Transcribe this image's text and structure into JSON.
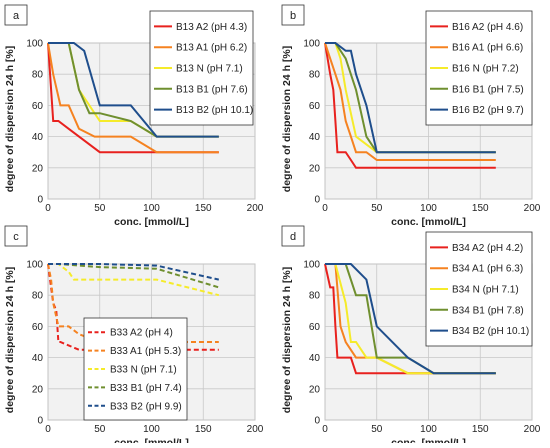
{
  "chart_data": [
    {
      "type": "line",
      "panel_label": "a",
      "xlabel": "conc. [mmol/L]",
      "ylabel": "degree of dispersion 24 h [%]",
      "xlim": [
        0,
        200
      ],
      "ylim": [
        0,
        100
      ],
      "xticks": [
        0,
        50,
        100,
        150,
        200
      ],
      "yticks": [
        0,
        20,
        40,
        60,
        80,
        100
      ],
      "grid": true,
      "legend_position": "top-right",
      "series": [
        {
          "name": "B13 A2 (pH 4.3)",
          "color": "#e8211e",
          "dashed": false,
          "x": [
            0,
            5,
            10,
            20,
            30,
            50,
            105,
            165
          ],
          "y": [
            100,
            50,
            50,
            45,
            40,
            30,
            30,
            30
          ]
        },
        {
          "name": "B13 A1 (pH 6.2)",
          "color": "#f58220",
          "dashed": false,
          "x": [
            0,
            5,
            12,
            20,
            30,
            45,
            80,
            105,
            165
          ],
          "y": [
            100,
            80,
            60,
            60,
            45,
            40,
            40,
            30,
            30
          ]
        },
        {
          "name": "B13 N (pH 7.1)",
          "color": "#f5eb2a",
          "dashed": false,
          "x": [
            0,
            10,
            20,
            30,
            40,
            50,
            80,
            105,
            165
          ],
          "y": [
            100,
            100,
            100,
            70,
            60,
            50,
            50,
            40,
            40
          ]
        },
        {
          "name": "B13 B1 (pH 7.6)",
          "color": "#6f8f2f",
          "dashed": false,
          "x": [
            0,
            10,
            20,
            30,
            40,
            50,
            80,
            105,
            165
          ],
          "y": [
            100,
            100,
            100,
            70,
            55,
            55,
            50,
            40,
            40
          ]
        },
        {
          "name": "B13 B2 (pH 10.1)",
          "color": "#1f4e8c",
          "dashed": false,
          "x": [
            0,
            10,
            25,
            35,
            50,
            80,
            105,
            165
          ],
          "y": [
            100,
            100,
            100,
            95,
            60,
            60,
            40,
            40
          ]
        }
      ]
    },
    {
      "type": "line",
      "panel_label": "b",
      "xlabel": "conc. [mmol/L]",
      "ylabel": "degree of dispersion 24 h [%]",
      "xlim": [
        0,
        200
      ],
      "ylim": [
        0,
        100
      ],
      "xticks": [
        0,
        50,
        100,
        150,
        200
      ],
      "yticks": [
        0,
        20,
        40,
        60,
        80,
        100
      ],
      "grid": true,
      "legend_position": "top-right",
      "series": [
        {
          "name": "B16 A2 (pH 4.6)",
          "color": "#e8211e",
          "dashed": false,
          "x": [
            0,
            5,
            8,
            10,
            12,
            20,
            25,
            30,
            165
          ],
          "y": [
            100,
            80,
            70,
            50,
            30,
            30,
            25,
            20,
            20
          ]
        },
        {
          "name": "B16 A1 (pH 6.6)",
          "color": "#f58220",
          "dashed": false,
          "x": [
            0,
            10,
            15,
            20,
            25,
            30,
            40,
            50,
            165
          ],
          "y": [
            100,
            80,
            70,
            50,
            40,
            30,
            30,
            25,
            25
          ]
        },
        {
          "name": "B16 N (pH 7.2)",
          "color": "#f5eb2a",
          "dashed": false,
          "x": [
            0,
            10,
            15,
            20,
            30,
            40,
            50,
            165
          ],
          "y": [
            100,
            100,
            90,
            70,
            40,
            35,
            30,
            30
          ]
        },
        {
          "name": "B16 B1 (pH 7.5)",
          "color": "#6f8f2f",
          "dashed": false,
          "x": [
            0,
            10,
            20,
            30,
            40,
            50,
            165
          ],
          "y": [
            100,
            100,
            90,
            70,
            40,
            30,
            30
          ]
        },
        {
          "name": "B16 B2 (pH 9.7)",
          "color": "#1f4e8c",
          "dashed": false,
          "x": [
            0,
            10,
            20,
            25,
            30,
            40,
            50,
            165
          ],
          "y": [
            100,
            100,
            95,
            95,
            80,
            60,
            30,
            30
          ]
        }
      ]
    },
    {
      "type": "line",
      "panel_label": "c",
      "xlabel": "conc. [mmol/L]",
      "ylabel": "degree of dispersion 24 h [%]",
      "xlim": [
        0,
        200
      ],
      "ylim": [
        0,
        100
      ],
      "xticks": [
        0,
        50,
        100,
        150,
        200
      ],
      "yticks": [
        0,
        20,
        40,
        60,
        80,
        100
      ],
      "grid": true,
      "legend_position": "bottom-center",
      "series": [
        {
          "name": "B33 A2 (pH 4)",
          "color": "#e8211e",
          "dashed": true,
          "x": [
            0,
            5,
            8,
            10,
            12,
            30,
            50,
            105,
            165
          ],
          "y": [
            100,
            75,
            70,
            50,
            50,
            45,
            45,
            45,
            45
          ]
        },
        {
          "name": "B33 A1 (pH 5.3)",
          "color": "#f58220",
          "dashed": true,
          "x": [
            0,
            3,
            5,
            10,
            20,
            30,
            50,
            105,
            165
          ],
          "y": [
            100,
            90,
            75,
            60,
            60,
            55,
            50,
            50,
            50
          ]
        },
        {
          "name": "B33 N (pH 7.1)",
          "color": "#f5eb2a",
          "dashed": true,
          "x": [
            0,
            10,
            20,
            25,
            50,
            105,
            165
          ],
          "y": [
            100,
            100,
            95,
            90,
            90,
            90,
            80
          ]
        },
        {
          "name": "B33 B1 (pH 7.4)",
          "color": "#6f8f2f",
          "dashed": true,
          "x": [
            0,
            10,
            50,
            105,
            165
          ],
          "y": [
            100,
            100,
            98,
            97,
            85
          ]
        },
        {
          "name": "B33 B2 (pH 9.9)",
          "color": "#1f4e8c",
          "dashed": true,
          "x": [
            0,
            10,
            50,
            105,
            165
          ],
          "y": [
            100,
            100,
            100,
            99,
            90
          ]
        }
      ]
    },
    {
      "type": "line",
      "panel_label": "d",
      "xlabel": "conc. [mmol/L]",
      "ylabel": "degree of dispersion 24 h [%]",
      "xlim": [
        0,
        200
      ],
      "ylim": [
        0,
        100
      ],
      "xticks": [
        0,
        50,
        100,
        150,
        200
      ],
      "yticks": [
        0,
        20,
        40,
        60,
        80,
        100
      ],
      "grid": true,
      "legend_position": "top-right",
      "series": [
        {
          "name": "B34 A2 (pH 4.2)",
          "color": "#e8211e",
          "dashed": false,
          "x": [
            0,
            5,
            8,
            10,
            12,
            25,
            30,
            80,
            105,
            165
          ],
          "y": [
            100,
            85,
            85,
            60,
            40,
            40,
            30,
            30,
            30,
            30
          ]
        },
        {
          "name": "B34 A1 (pH 6.3)",
          "color": "#f58220",
          "dashed": false,
          "x": [
            0,
            10,
            15,
            20,
            30,
            50,
            80,
            105,
            165
          ],
          "y": [
            100,
            100,
            60,
            50,
            40,
            40,
            30,
            30,
            30
          ]
        },
        {
          "name": "B34 N (pH 7.1)",
          "color": "#f5eb2a",
          "dashed": false,
          "x": [
            0,
            10,
            20,
            25,
            30,
            40,
            50,
            80,
            105,
            165
          ],
          "y": [
            100,
            100,
            75,
            50,
            50,
            40,
            40,
            30,
            30,
            30
          ]
        },
        {
          "name": "B34 B1 (pH 7.8)",
          "color": "#6f8f2f",
          "dashed": false,
          "x": [
            0,
            10,
            20,
            30,
            40,
            50,
            80,
            105,
            165
          ],
          "y": [
            100,
            100,
            100,
            80,
            80,
            40,
            40,
            30,
            30
          ]
        },
        {
          "name": "B34 B2 (pH 10.1)",
          "color": "#1f4e8c",
          "dashed": false,
          "x": [
            0,
            10,
            25,
            40,
            50,
            80,
            105,
            165
          ],
          "y": [
            100,
            100,
            100,
            90,
            60,
            40,
            30,
            30
          ]
        }
      ]
    }
  ]
}
